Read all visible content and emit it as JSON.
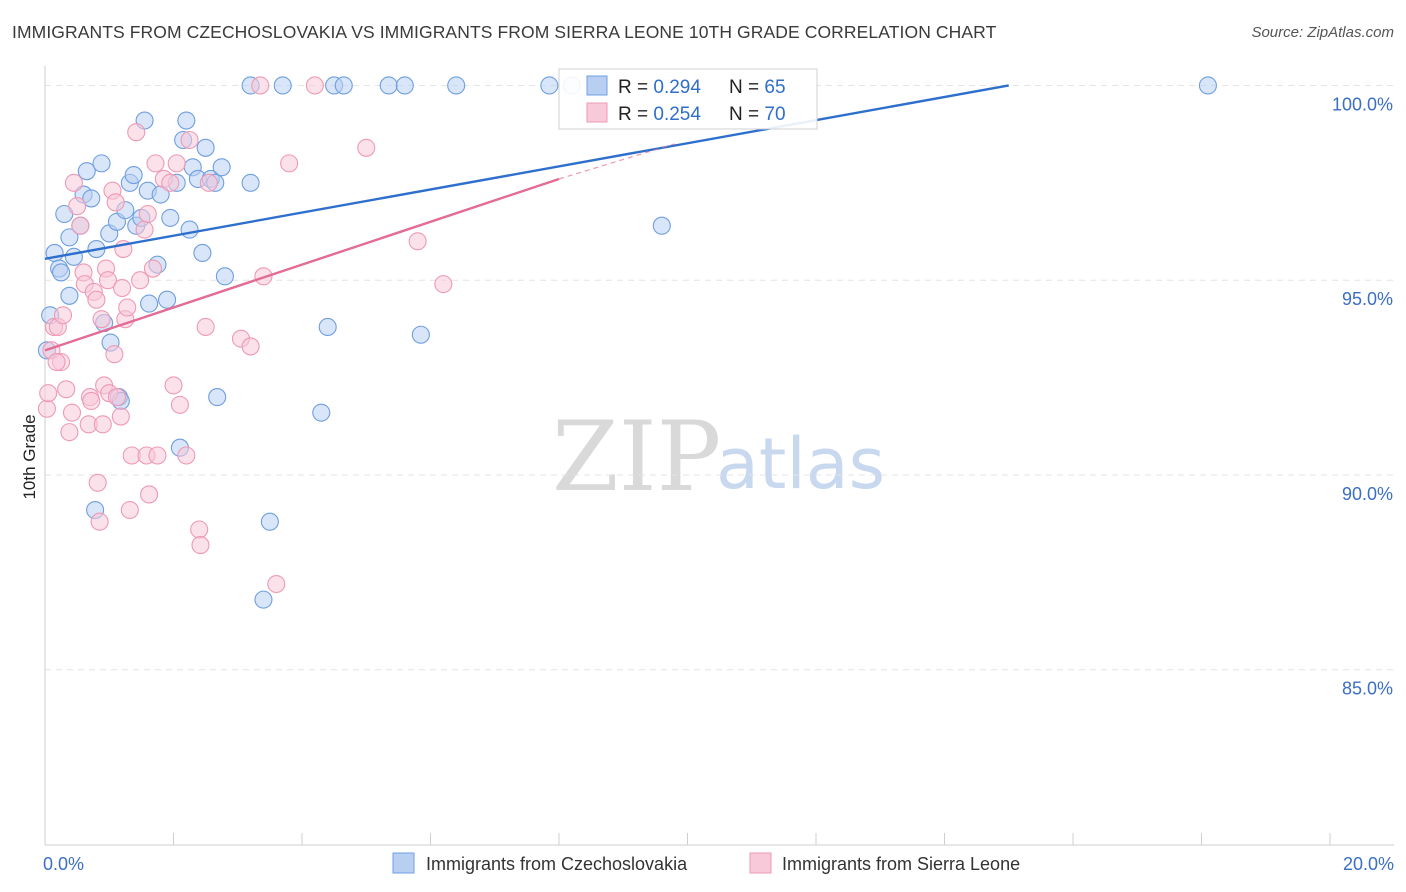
{
  "title": "IMMIGRANTS FROM CZECHOSLOVAKIA VS IMMIGRANTS FROM SIERRA LEONE 10TH GRADE CORRELATION CHART",
  "source": "Source: ZipAtlas.com",
  "watermark": {
    "zip": "ZIP",
    "atlas": "atlas"
  },
  "chart_data": {
    "type": "scatter",
    "title": "IMMIGRANTS FROM CZECHOSLOVAKIA VS IMMIGRANTS FROM SIERRA LEONE 10TH GRADE CORRELATION CHART",
    "xlabel": "",
    "ylabel": "10th Grade",
    "xlim": [
      0,
      20
    ],
    "ylim": [
      80.5,
      100.5
    ],
    "x_tick_labels": {
      "min": "0.0%",
      "max": "20.0%"
    },
    "y_ticks": [
      {
        "value": 85,
        "label": "85.0%"
      },
      {
        "value": 90,
        "label": "90.0%"
      },
      {
        "value": 95,
        "label": "95.0%"
      },
      {
        "value": 100,
        "label": "100.0%"
      }
    ],
    "grid": true,
    "legend_position": "bottom",
    "stats": [
      {
        "r_label": "R = ",
        "r_value": "0.294",
        "n_label": "N = ",
        "n_value": "65"
      },
      {
        "r_label": "R = ",
        "r_value": "0.254",
        "n_label": "N = ",
        "n_value": "70"
      }
    ],
    "series": [
      {
        "name": "Immigrants from Czechoslovakia",
        "color": "#6f9fe0",
        "fill": "#b9cff2",
        "line_color": "#2e6fcd",
        "trend": {
          "x0": 0.0,
          "y0": 95.55,
          "x1": 15.0,
          "y1": 100.0
        },
        "points": [
          [
            0.03,
            93.2
          ],
          [
            0.08,
            94.1
          ],
          [
            0.15,
            95.7
          ],
          [
            0.22,
            95.3
          ],
          [
            0.3,
            96.7
          ],
          [
            0.38,
            96.1
          ],
          [
            0.45,
            95.6
          ],
          [
            0.55,
            96.4
          ],
          [
            0.6,
            97.2
          ],
          [
            0.65,
            97.8
          ],
          [
            0.72,
            97.1
          ],
          [
            0.8,
            95.8
          ],
          [
            0.88,
            98.0
          ],
          [
            0.92,
            93.9
          ],
          [
            1.0,
            96.2
          ],
          [
            1.02,
            93.4
          ],
          [
            1.12,
            96.5
          ],
          [
            1.15,
            92.0
          ],
          [
            1.18,
            91.9
          ],
          [
            1.25,
            96.8
          ],
          [
            1.32,
            97.5
          ],
          [
            1.38,
            97.7
          ],
          [
            1.42,
            96.4
          ],
          [
            1.5,
            96.6
          ],
          [
            1.55,
            99.1
          ],
          [
            1.6,
            97.3
          ],
          [
            1.75,
            95.4
          ],
          [
            1.8,
            97.2
          ],
          [
            1.9,
            94.5
          ],
          [
            1.95,
            96.6
          ],
          [
            2.05,
            97.5
          ],
          [
            2.1,
            90.7
          ],
          [
            2.15,
            98.6
          ],
          [
            2.2,
            99.1
          ],
          [
            2.25,
            96.3
          ],
          [
            2.3,
            97.9
          ],
          [
            2.38,
            97.6
          ],
          [
            2.45,
            95.7
          ],
          [
            2.5,
            98.4
          ],
          [
            2.58,
            97.6
          ],
          [
            2.65,
            97.5
          ],
          [
            2.68,
            92.0
          ],
          [
            2.75,
            97.9
          ],
          [
            2.8,
            95.1
          ],
          [
            3.2,
            100.0
          ],
          [
            3.2,
            97.5
          ],
          [
            3.4,
            86.8
          ],
          [
            3.5,
            88.8
          ],
          [
            3.7,
            100.0
          ],
          [
            4.3,
            91.6
          ],
          [
            4.4,
            93.8
          ],
          [
            4.5,
            100.0
          ],
          [
            4.65,
            100.0
          ],
          [
            5.35,
            100.0
          ],
          [
            5.6,
            100.0
          ],
          [
            5.85,
            93.6
          ],
          [
            6.4,
            100.0
          ],
          [
            7.85,
            100.0
          ],
          [
            8.2,
            100.0
          ],
          [
            9.6,
            96.4
          ],
          [
            18.1,
            100.0
          ],
          [
            0.38,
            94.6
          ],
          [
            0.78,
            89.1
          ],
          [
            0.25,
            95.2
          ],
          [
            1.62,
            94.4
          ]
        ]
      },
      {
        "name": "Immigrants from Sierra Leone",
        "color": "#ee9ab5",
        "fill": "#f8c9d8",
        "line_color": "#e36b95",
        "trend": {
          "x0": 0.0,
          "y0": 93.2,
          "x1": 8.0,
          "y1": 97.6,
          "dash_x1": 9.8,
          "dash_y1": 98.5
        },
        "points": [
          [
            0.03,
            91.7
          ],
          [
            0.05,
            92.1
          ],
          [
            0.1,
            93.2
          ],
          [
            0.14,
            93.8
          ],
          [
            0.2,
            93.8
          ],
          [
            0.25,
            92.9
          ],
          [
            0.28,
            94.1
          ],
          [
            0.33,
            92.2
          ],
          [
            0.38,
            91.1
          ],
          [
            0.42,
            91.6
          ],
          [
            0.45,
            97.5
          ],
          [
            0.5,
            96.9
          ],
          [
            0.55,
            96.4
          ],
          [
            0.6,
            95.2
          ],
          [
            0.62,
            94.9
          ],
          [
            0.68,
            91.3
          ],
          [
            0.7,
            92.0
          ],
          [
            0.72,
            91.9
          ],
          [
            0.76,
            94.7
          ],
          [
            0.8,
            94.5
          ],
          [
            0.82,
            89.8
          ],
          [
            0.85,
            88.8
          ],
          [
            0.88,
            94.0
          ],
          [
            0.9,
            91.3
          ],
          [
            0.92,
            92.3
          ],
          [
            0.95,
            95.3
          ],
          [
            0.98,
            95.0
          ],
          [
            1.0,
            92.1
          ],
          [
            1.05,
            97.3
          ],
          [
            1.08,
            93.1
          ],
          [
            1.1,
            97.0
          ],
          [
            1.12,
            92.0
          ],
          [
            1.18,
            91.5
          ],
          [
            1.2,
            94.8
          ],
          [
            1.22,
            95.8
          ],
          [
            1.25,
            94.0
          ],
          [
            1.28,
            94.3
          ],
          [
            1.32,
            89.1
          ],
          [
            1.35,
            90.5
          ],
          [
            1.42,
            98.8
          ],
          [
            1.48,
            95.0
          ],
          [
            1.55,
            96.3
          ],
          [
            1.58,
            90.5
          ],
          [
            1.6,
            96.7
          ],
          [
            1.62,
            89.5
          ],
          [
            1.68,
            95.3
          ],
          [
            1.72,
            98.0
          ],
          [
            1.75,
            90.5
          ],
          [
            1.85,
            97.6
          ],
          [
            1.95,
            97.5
          ],
          [
            2.0,
            92.3
          ],
          [
            2.05,
            98.0
          ],
          [
            2.1,
            91.8
          ],
          [
            2.2,
            90.5
          ],
          [
            2.25,
            98.6
          ],
          [
            2.4,
            88.6
          ],
          [
            2.42,
            88.2
          ],
          [
            2.5,
            93.8
          ],
          [
            2.55,
            97.5
          ],
          [
            3.05,
            93.5
          ],
          [
            3.2,
            93.3
          ],
          [
            3.4,
            95.1
          ],
          [
            3.6,
            87.2
          ],
          [
            3.8,
            98.0
          ],
          [
            4.2,
            100.0
          ],
          [
            5.0,
            98.4
          ],
          [
            5.8,
            96.0
          ],
          [
            6.2,
            94.9
          ],
          [
            3.35,
            100.0
          ],
          [
            0.18,
            92.9
          ]
        ]
      }
    ]
  }
}
